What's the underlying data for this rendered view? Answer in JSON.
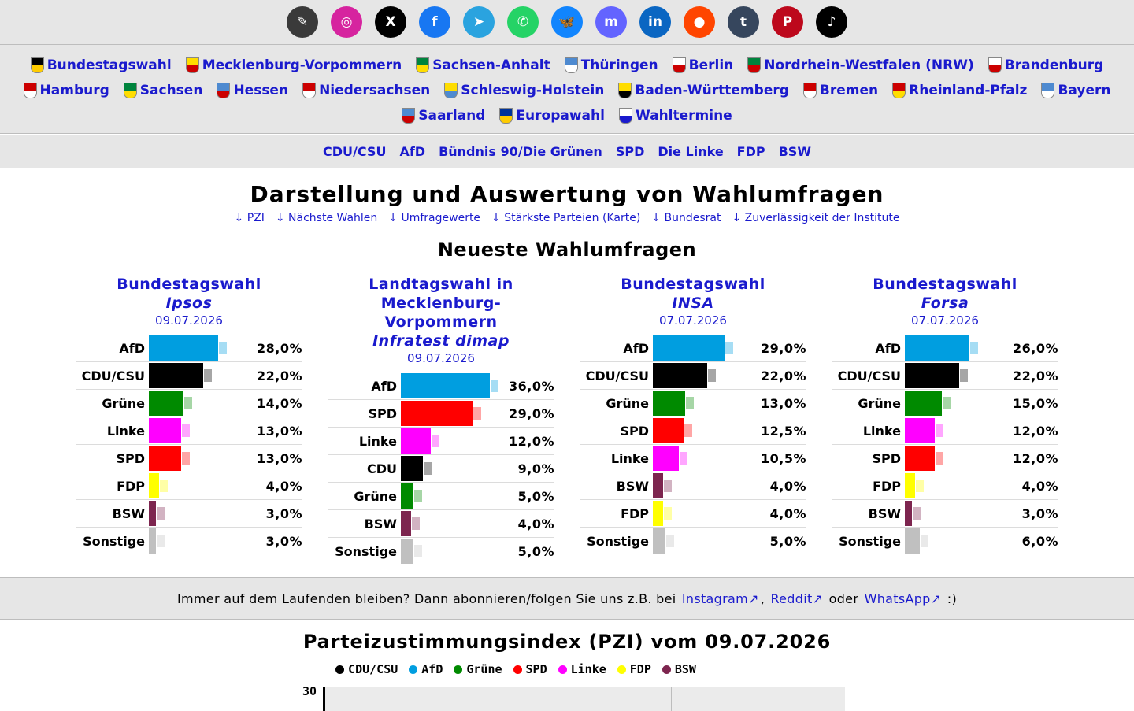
{
  "social": [
    {
      "name": "app",
      "glyph": "✎",
      "color": "#3a3a3a"
    },
    {
      "name": "instagram",
      "glyph": "◎",
      "color": "#d6249f"
    },
    {
      "name": "x",
      "glyph": "X",
      "color": "#000000"
    },
    {
      "name": "facebook",
      "glyph": "f",
      "color": "#1877f2"
    },
    {
      "name": "telegram",
      "glyph": "➤",
      "color": "#2aa3df"
    },
    {
      "name": "whatsapp",
      "glyph": "✆",
      "color": "#25d366"
    },
    {
      "name": "bluesky",
      "glyph": "🦋",
      "color": "#1185fe"
    },
    {
      "name": "mastodon",
      "glyph": "m",
      "color": "#6364ff"
    },
    {
      "name": "linkedin",
      "glyph": "in",
      "color": "#0a66c2"
    },
    {
      "name": "reddit",
      "glyph": "●",
      "color": "#ff4500"
    },
    {
      "name": "tumblr",
      "glyph": "t",
      "color": "#36465d"
    },
    {
      "name": "pinterest",
      "glyph": "P",
      "color": "#bd081c"
    },
    {
      "name": "tiktok",
      "glyph": "♪",
      "color": "#000000"
    }
  ],
  "states_rows": [
    [
      {
        "label": "Bundestagswahl",
        "c1": "#000000",
        "c2": "#ffcc00"
      },
      {
        "label": "Mecklenburg-Vorpommern",
        "c1": "#ffdd00",
        "c2": "#cc0000"
      },
      {
        "label": "Sachsen-Anhalt",
        "c1": "#00843d",
        "c2": "#ffdd00"
      },
      {
        "label": "Thüringen",
        "c1": "#4e8ad0",
        "c2": "#ffffff"
      },
      {
        "label": "Berlin",
        "c1": "#ffffff",
        "c2": "#cc0000"
      },
      {
        "label": "Nordrhein-Westfalen (NRW)",
        "c1": "#00843d",
        "c2": "#cc0000"
      },
      {
        "label": "Brandenburg",
        "c1": "#ffffff",
        "c2": "#cc0000"
      }
    ],
    [
      {
        "label": "Hamburg",
        "c1": "#cc0000",
        "c2": "#ffffff"
      },
      {
        "label": "Sachsen",
        "c1": "#00843d",
        "c2": "#ffdd00"
      },
      {
        "label": "Hessen",
        "c1": "#4e8ad0",
        "c2": "#cc0000"
      },
      {
        "label": "Niedersachsen",
        "c1": "#cc0000",
        "c2": "#ffffff"
      },
      {
        "label": "Schleswig-Holstein",
        "c1": "#ffdd00",
        "c2": "#4e8ad0"
      },
      {
        "label": "Baden-Württemberg",
        "c1": "#ffdd00",
        "c2": "#000000"
      },
      {
        "label": "Bremen",
        "c1": "#cc0000",
        "c2": "#ffffff"
      },
      {
        "label": "Rheinland-Pfalz",
        "c1": "#cc0000",
        "c2": "#ffdd00"
      },
      {
        "label": "Bayern",
        "c1": "#4e8ad0",
        "c2": "#ffffff"
      }
    ],
    [
      {
        "label": "Saarland",
        "c1": "#4e8ad0",
        "c2": "#cc0000"
      },
      {
        "label": "Europawahl",
        "c1": "#003399",
        "c2": "#ffcc00"
      },
      {
        "label": "Wahltermine",
        "c1": "#ffffff",
        "c2": "#1a1acd"
      }
    ]
  ],
  "parties_nav": [
    "CDU/CSU",
    "AfD",
    "Bündnis 90/Die Grünen",
    "SPD",
    "Die Linke",
    "FDP",
    "BSW"
  ],
  "page_title": "Darstellung und Auswertung von Wahlumfragen",
  "toc": [
    "↓ PZI",
    "↓ Nächste Wahlen",
    "↓ Umfragewerte",
    "↓ Stärkste Parteien (Karte)",
    "↓ Bundesrat",
    "↓ Zuverlässigkeit der Institute"
  ],
  "latest_heading": "Neueste Wahlumfragen",
  "polls": [
    {
      "title": "Bundestagswahl",
      "institute": "Ipsos",
      "date": "09.07.2026",
      "rows": [
        {
          "party": "AfD",
          "value": "28,0%",
          "pct": 28.0,
          "color": "#009ee0"
        },
        {
          "party": "CDU/CSU",
          "value": "22,0%",
          "pct": 22.0,
          "color": "#000000"
        },
        {
          "party": "Grüne",
          "value": "14,0%",
          "pct": 14.0,
          "color": "#008a00"
        },
        {
          "party": "Linke",
          "value": "13,0%",
          "pct": 13.0,
          "color": "#ff00ff"
        },
        {
          "party": "SPD",
          "value": "13,0%",
          "pct": 13.0,
          "color": "#ff0000"
        },
        {
          "party": "FDP",
          "value": "4,0%",
          "pct": 4.0,
          "color": "#ffff00"
        },
        {
          "party": "BSW",
          "value": "3,0%",
          "pct": 3.0,
          "color": "#7d254f"
        },
        {
          "party": "Sonstige",
          "value": "3,0%",
          "pct": 3.0,
          "color": "#c0c0c0"
        }
      ]
    },
    {
      "title": "Landtagswahl in Mecklenburg-Vorpommern",
      "institute": "Infratest dimap",
      "date": "09.07.2026",
      "rows": [
        {
          "party": "AfD",
          "value": "36,0%",
          "pct": 36.0,
          "color": "#009ee0"
        },
        {
          "party": "SPD",
          "value": "29,0%",
          "pct": 29.0,
          "color": "#ff0000"
        },
        {
          "party": "Linke",
          "value": "12,0%",
          "pct": 12.0,
          "color": "#ff00ff"
        },
        {
          "party": "CDU",
          "value": "9,0%",
          "pct": 9.0,
          "color": "#000000"
        },
        {
          "party": "Grüne",
          "value": "5,0%",
          "pct": 5.0,
          "color": "#008a00"
        },
        {
          "party": "BSW",
          "value": "4,0%",
          "pct": 4.0,
          "color": "#7d254f"
        },
        {
          "party": "Sonstige",
          "value": "5,0%",
          "pct": 5.0,
          "color": "#c0c0c0"
        }
      ]
    },
    {
      "title": "Bundestagswahl",
      "institute": "INSA",
      "date": "07.07.2026",
      "rows": [
        {
          "party": "AfD",
          "value": "29,0%",
          "pct": 29.0,
          "color": "#009ee0"
        },
        {
          "party": "CDU/CSU",
          "value": "22,0%",
          "pct": 22.0,
          "color": "#000000"
        },
        {
          "party": "Grüne",
          "value": "13,0%",
          "pct": 13.0,
          "color": "#008a00"
        },
        {
          "party": "SPD",
          "value": "12,5%",
          "pct": 12.5,
          "color": "#ff0000"
        },
        {
          "party": "Linke",
          "value": "10,5%",
          "pct": 10.5,
          "color": "#ff00ff"
        },
        {
          "party": "BSW",
          "value": "4,0%",
          "pct": 4.0,
          "color": "#7d254f"
        },
        {
          "party": "FDP",
          "value": "4,0%",
          "pct": 4.0,
          "color": "#ffff00"
        },
        {
          "party": "Sonstige",
          "value": "5,0%",
          "pct": 5.0,
          "color": "#c0c0c0"
        }
      ]
    },
    {
      "title": "Bundestagswahl",
      "institute": "Forsa",
      "date": "07.07.2026",
      "rows": [
        {
          "party": "AfD",
          "value": "26,0%",
          "pct": 26.0,
          "color": "#009ee0"
        },
        {
          "party": "CDU/CSU",
          "value": "22,0%",
          "pct": 22.0,
          "color": "#000000"
        },
        {
          "party": "Grüne",
          "value": "15,0%",
          "pct": 15.0,
          "color": "#008a00"
        },
        {
          "party": "Linke",
          "value": "12,0%",
          "pct": 12.0,
          "color": "#ff00ff"
        },
        {
          "party": "SPD",
          "value": "12,0%",
          "pct": 12.0,
          "color": "#ff0000"
        },
        {
          "party": "FDP",
          "value": "4,0%",
          "pct": 4.0,
          "color": "#ffff00"
        },
        {
          "party": "BSW",
          "value": "3,0%",
          "pct": 3.0,
          "color": "#7d254f"
        },
        {
          "party": "Sonstige",
          "value": "6,0%",
          "pct": 6.0,
          "color": "#c0c0c0"
        }
      ]
    }
  ],
  "follow": {
    "text": "Immer auf dem Laufenden bleiben? Dann abonnieren/folgen Sie uns z.B. bei",
    "link1": "Instagram↗",
    "sep": ",",
    "link2": "Reddit↗",
    "or": "oder",
    "link3": "WhatsApp↗",
    "end": ":)"
  },
  "pzi_title": "Parteizustimmungsindex (PZI) vom 09.07.2026",
  "pzi_legend": [
    {
      "label": "CDU/CSU",
      "color": "#000000"
    },
    {
      "label": "AfD",
      "color": "#009ee0"
    },
    {
      "label": "Grüne",
      "color": "#008a00"
    },
    {
      "label": "SPD",
      "color": "#ff0000"
    },
    {
      "label": "Linke",
      "color": "#ff00ff"
    },
    {
      "label": "FDP",
      "color": "#ffff00"
    },
    {
      "label": "BSW",
      "color": "#7d254f"
    }
  ],
  "pzi_ytick": "30"
}
